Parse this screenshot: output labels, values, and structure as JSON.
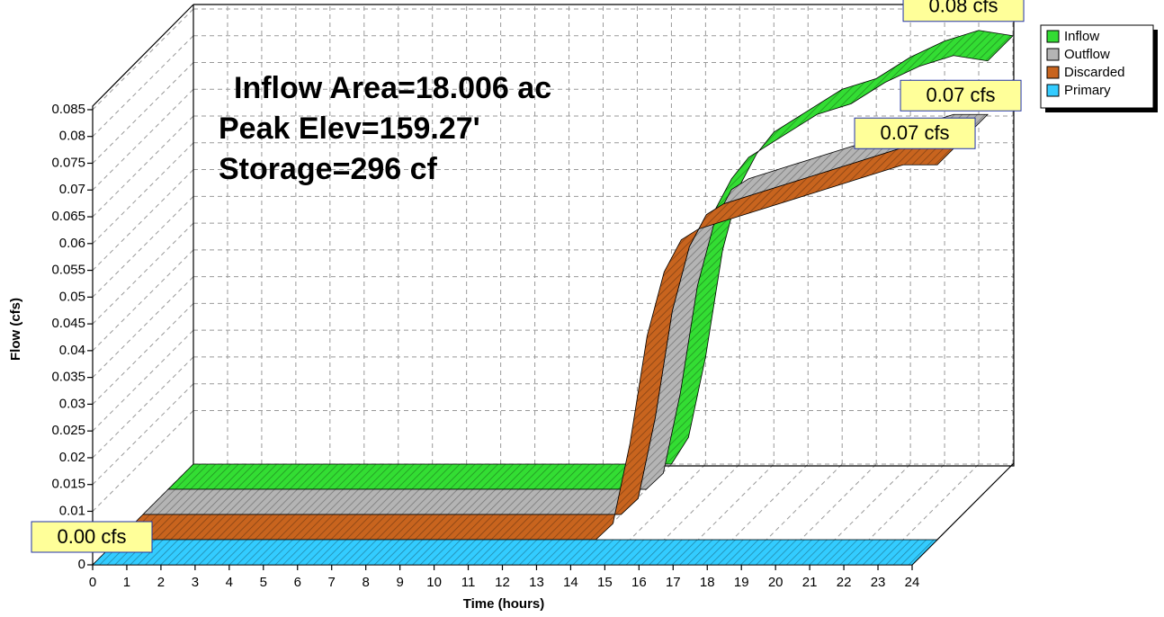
{
  "chart_data": {
    "type": "line3d",
    "xlabel": "Time  (hours)",
    "ylabel": "Flow  (cfs)",
    "annotations": [
      "Inflow Area=18.006 ac",
      "Peak Elev=159.27'",
      "Storage=296 cf"
    ],
    "x": [
      0,
      14,
      14.5,
      15,
      15.5,
      16,
      16.5,
      17,
      18,
      19,
      20,
      21,
      22,
      23,
      24
    ],
    "series": [
      {
        "name": "Inflow",
        "color": "#33dd33",
        "peak_label": "0.08 cfs",
        "values": [
          0,
          0,
          0.005,
          0.02,
          0.04,
          0.052,
          0.058,
          0.062,
          0.066,
          0.07,
          0.072,
          0.076,
          0.079,
          0.081,
          0.08
        ]
      },
      {
        "name": "Outflow",
        "color": "#b4b4b4",
        "peak_label": "0.07 cfs",
        "values": [
          0,
          0,
          0.003,
          0.018,
          0.038,
          0.05,
          0.056,
          0.058,
          0.06,
          0.062,
          0.064,
          0.066,
          0.068,
          0.07,
          0.07
        ]
      },
      {
        "name": "Discarded",
        "color": "#c8641e",
        "peak_label": "0.07 cfs",
        "values": [
          0,
          0,
          0.003,
          0.018,
          0.038,
          0.05,
          0.056,
          0.058,
          0.06,
          0.062,
          0.064,
          0.066,
          0.068,
          0.07,
          0.07
        ]
      },
      {
        "name": "Primary",
        "color": "#33ccff",
        "peak_label": "0.00 cfs",
        "values": [
          0,
          0,
          0,
          0,
          0,
          0,
          0,
          0,
          0,
          0,
          0,
          0,
          0,
          0,
          0
        ]
      }
    ],
    "xlim": [
      0,
      24
    ],
    "xticks": [
      0,
      1,
      2,
      3,
      4,
      5,
      6,
      7,
      8,
      9,
      10,
      11,
      12,
      13,
      14,
      15,
      16,
      17,
      18,
      19,
      20,
      21,
      22,
      23,
      24
    ],
    "ylim": [
      0,
      0.086
    ],
    "yticks": [
      0,
      0.01,
      0.015,
      0.02,
      0.025,
      0.03,
      0.035,
      0.04,
      0.045,
      0.05,
      0.055,
      0.06,
      0.065,
      0.07,
      0.075,
      0.08,
      0.085
    ],
    "grid": true,
    "legend": "top-right"
  }
}
